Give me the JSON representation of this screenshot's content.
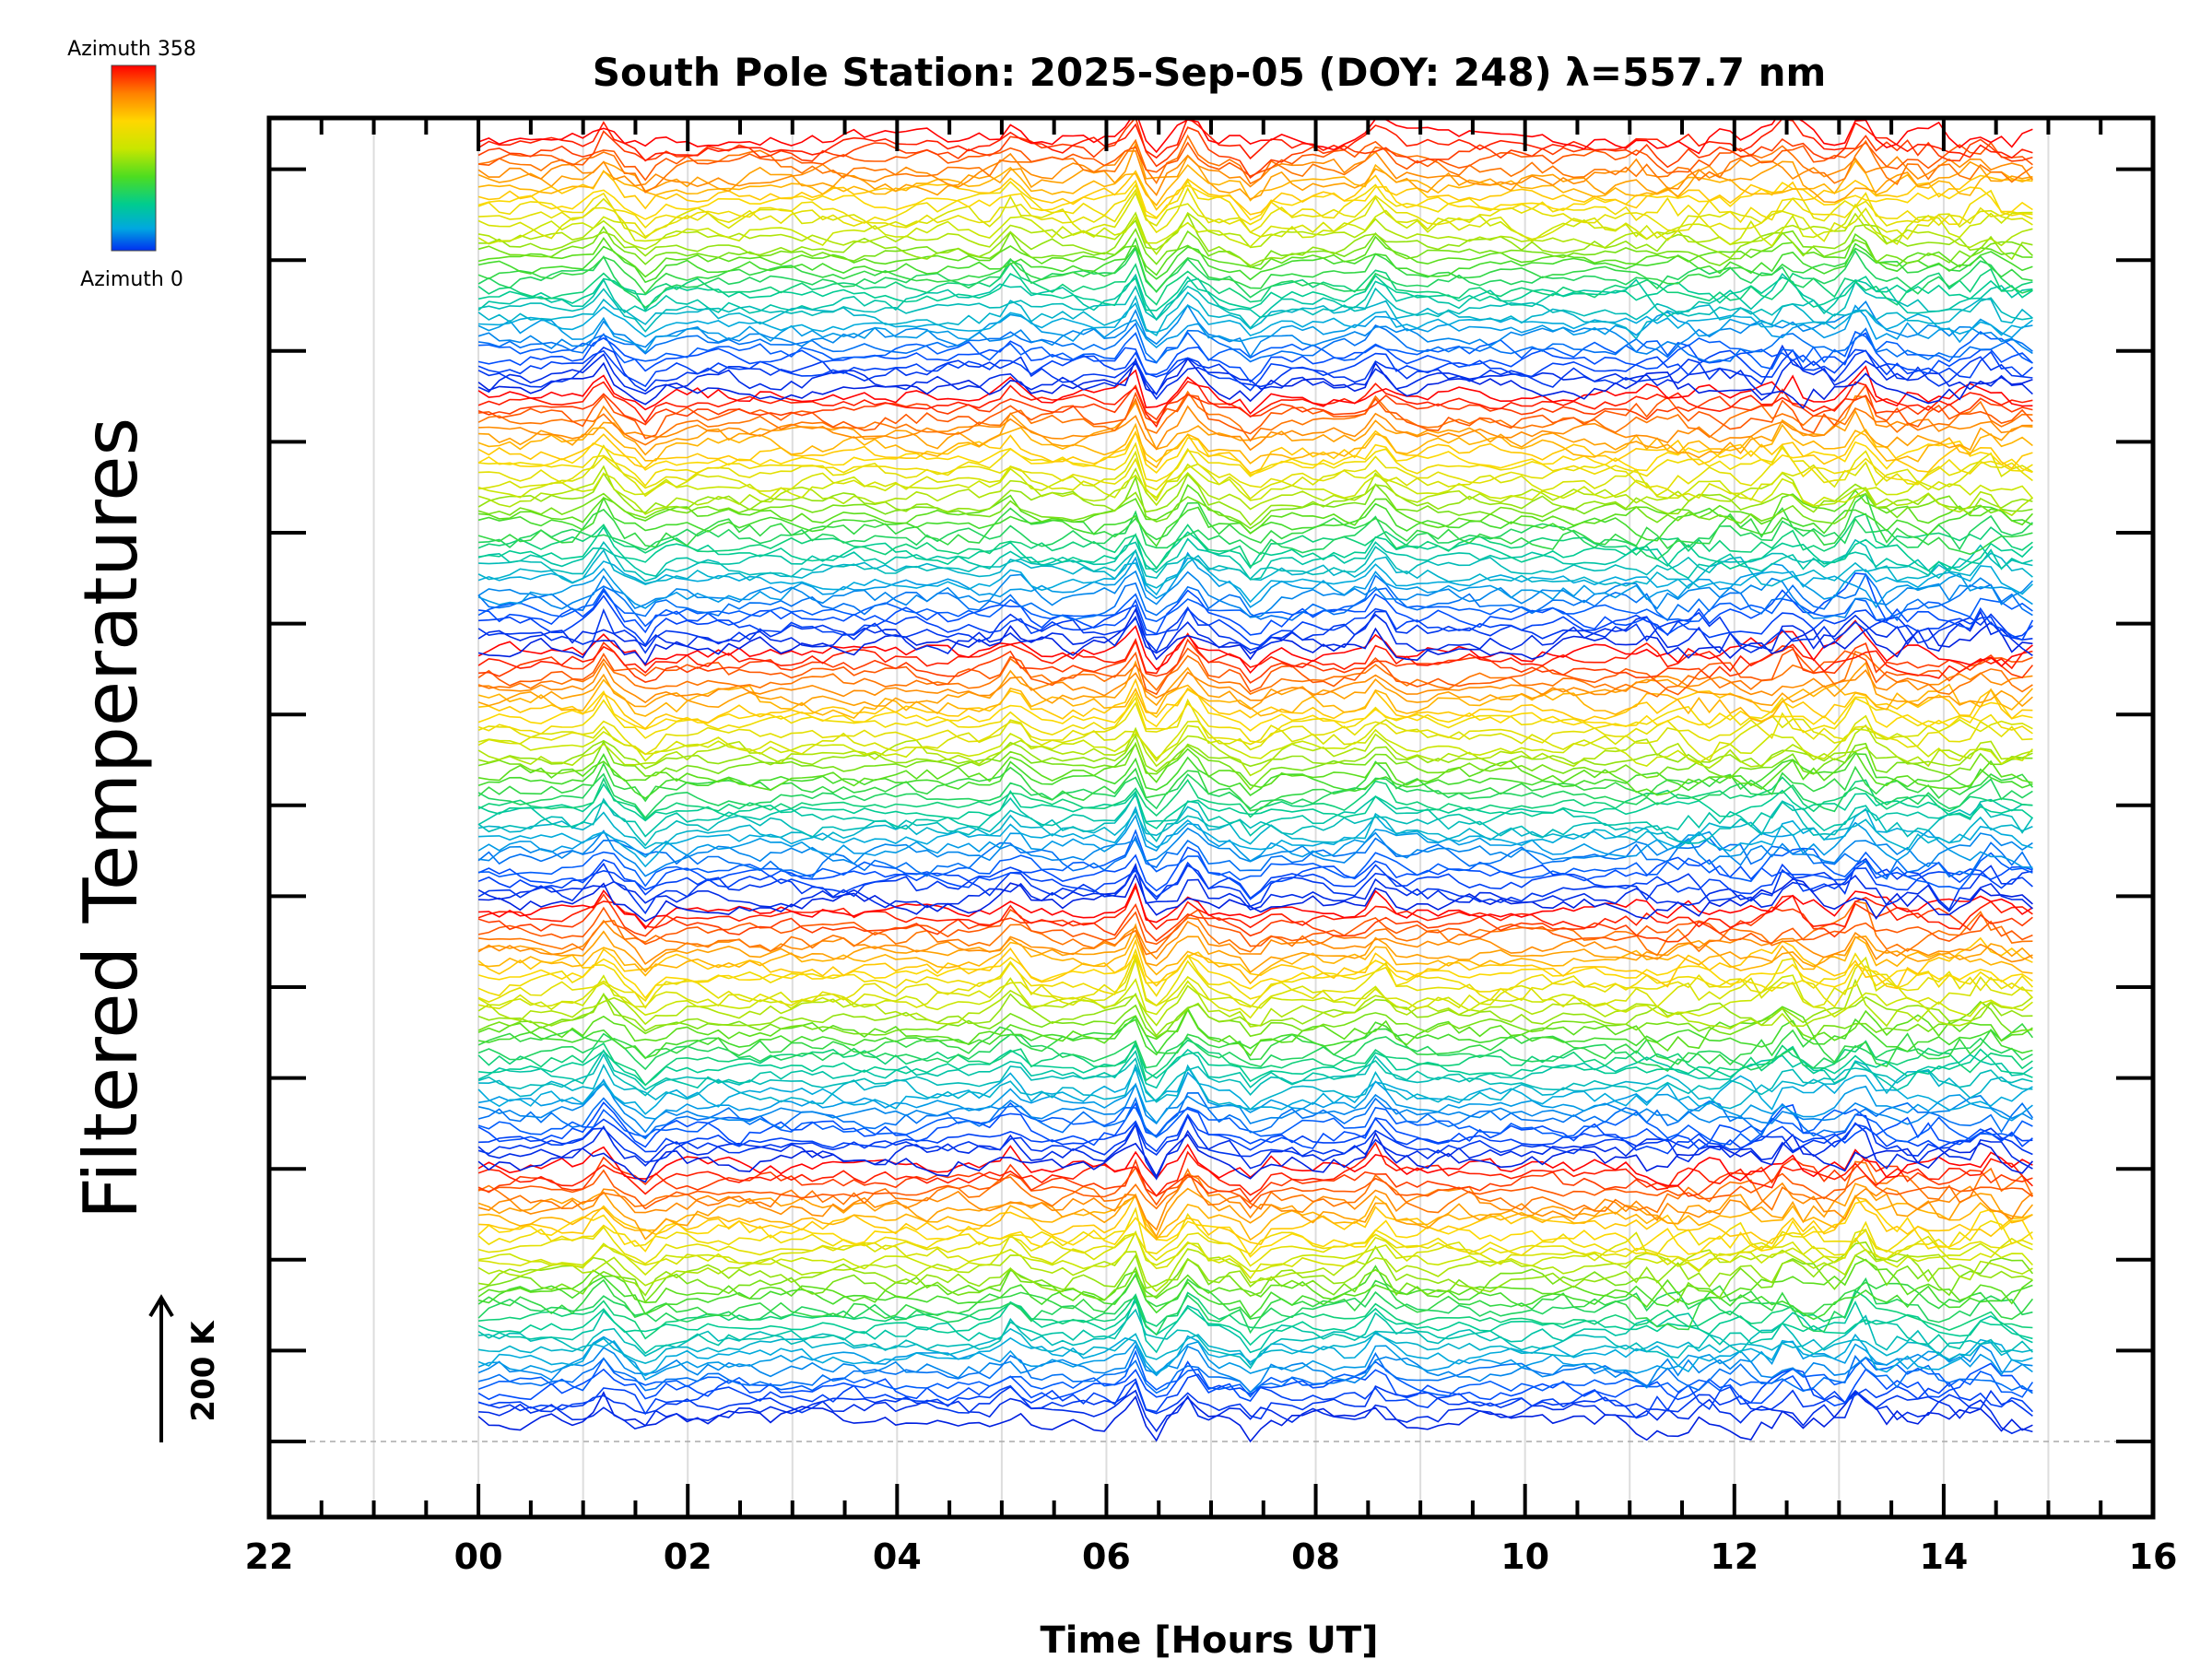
{
  "chart_data": {
    "type": "line",
    "title": "South Pole Station: 2025-Sep-05 (DOY: 248) λ=557.7 nm",
    "xlabel": "Time [Hours UT]",
    "ylabel": "Filtered Temperatures",
    "x_tick_labels": [
      "22",
      "00",
      "02",
      "04",
      "06",
      "08",
      "10",
      "12",
      "14",
      "16"
    ],
    "xlim": [
      -2,
      16
    ],
    "data_x_range": [
      0,
      14.85
    ],
    "grid": true,
    "scale_bar_label": "200 K",
    "colorbar": {
      "top_label": "Azimuth 358",
      "bottom_label": "Azimuth 0",
      "colors": [
        "#ff0000",
        "#ff8000",
        "#ffd700",
        "#c8e600",
        "#4ddd20",
        "#00cc90",
        "#00a8e0",
        "#0050ff",
        "#0020e0"
      ]
    },
    "series_count": 180,
    "series_description": "Stacked filtered temperature traces, one per azimuth (0-358), each offset vertically; color encodes azimuth"
  }
}
